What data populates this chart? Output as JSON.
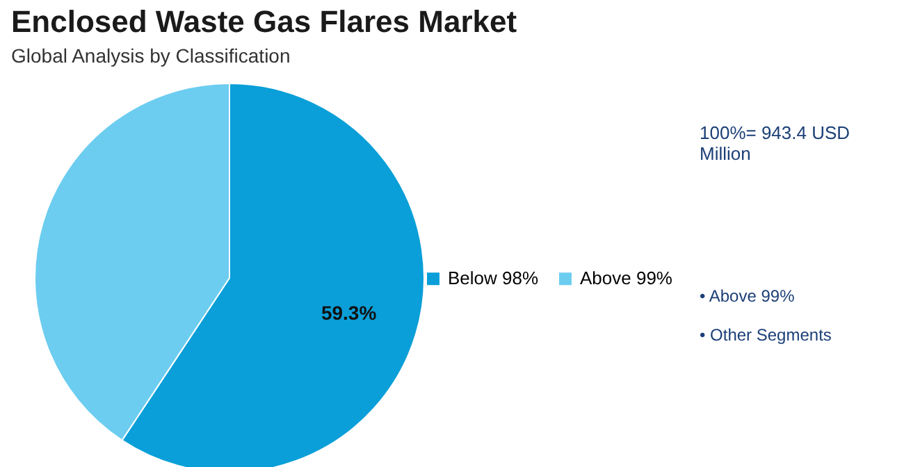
{
  "chart_data": {
    "type": "pie",
    "title": "Enclosed Waste Gas Flares Market",
    "subtitle": "Global Analysis by Classification",
    "categories": [
      "Below 98%",
      "Above 99%"
    ],
    "values": [
      59.3,
      40.7
    ],
    "colors": [
      "#0a9fd8",
      "#6ccdf0"
    ],
    "value_labels": [
      "59.3%",
      null
    ],
    "legend": "right",
    "annotations": [
      "100%= 943.4 USD Million",
      "• Above 99%",
      "• Other Segments"
    ]
  }
}
